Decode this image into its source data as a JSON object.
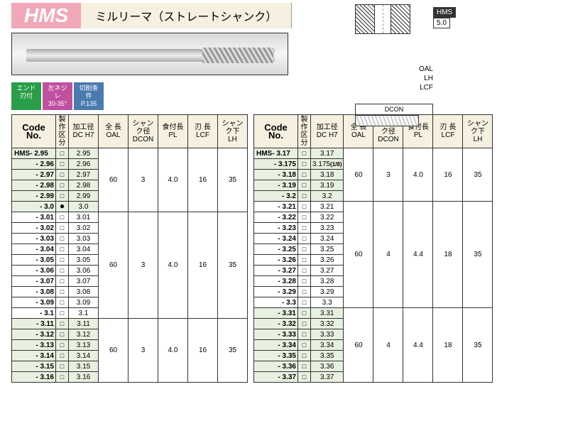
{
  "header": {
    "code": "HMS",
    "title": "ミルリーマ（ストレートシャンク）"
  },
  "spec_tag": {
    "code": "HMS",
    "value": "5.0"
  },
  "dim_labels": {
    "oal": "OAL",
    "lh": "LH",
    "lcf": "LCF",
    "dcon": "DCON"
  },
  "badges": [
    {
      "l1": "エンド",
      "l2": "刃付"
    },
    {
      "l1": "左ネジレ",
      "l2": "30-35°"
    },
    {
      "l1": "切削条件",
      "l2": "P.135"
    }
  ],
  "columns": {
    "code": "Code No.",
    "chk": "製作\n区分",
    "dc": "加工径\nDC H7",
    "oal": "全 長\nOAL",
    "dcon": "シャンク径\nDCON",
    "pl": "食付長\nPL",
    "lcf": "刃 長\nLCF",
    "lh": "シャンク下\nLH"
  },
  "colors": {
    "header_bg": "#f5f0e0",
    "hms_bg": "#f0a8b8",
    "badge_colors": [
      "#2a9d4a",
      "#c050a0",
      "#4a7ab0"
    ],
    "group_odd": "#e8f0e0",
    "highlight": "#fff68f"
  },
  "left_groups": [
    {
      "spans": {
        "oal": "60",
        "dcon": "3",
        "pl": "4.0",
        "lcf": "16",
        "lh": "35"
      },
      "rows": [
        {
          "code": "HMS- 2.95",
          "chk": "□",
          "dc": "2.95"
        },
        {
          "code": "- 2.96",
          "chk": "□",
          "dc": "2.96"
        },
        {
          "code": "- 2.97",
          "chk": "□",
          "dc": "2.97"
        },
        {
          "code": "- 2.98",
          "chk": "□",
          "dc": "2.98"
        },
        {
          "code": "- 2.99",
          "chk": "□",
          "dc": "2.99"
        },
        {
          "code": "- 3.0",
          "chk": "●",
          "dc": "3.0"
        }
      ]
    },
    {
      "spans": {
        "oal": "60",
        "dcon": "3",
        "pl": "4.0",
        "lcf": "16",
        "lh": "35"
      },
      "rows": [
        {
          "code": "- 3.01",
          "chk": "□",
          "dc": "3.01"
        },
        {
          "code": "- 3.02",
          "chk": "□",
          "dc": "3.02"
        },
        {
          "code": "- 3.03",
          "chk": "□",
          "dc": "3.03"
        },
        {
          "code": "- 3.04",
          "chk": "□",
          "dc": "3.04"
        },
        {
          "code": "- 3.05",
          "chk": "□",
          "dc": "3.05"
        },
        {
          "code": "- 3.06",
          "chk": "□",
          "dc": "3.06"
        },
        {
          "code": "- 3.07",
          "chk": "□",
          "dc": "3.07"
        },
        {
          "code": "- 3.08",
          "chk": "□",
          "dc": "3.08"
        },
        {
          "code": "- 3.09",
          "chk": "□",
          "dc": "3.09"
        },
        {
          "code": "- 3.1",
          "chk": "□",
          "dc": "3.1"
        }
      ]
    },
    {
      "spans": {
        "oal": "60",
        "dcon": "3",
        "pl": "4.0",
        "lcf": "16",
        "lh": "35"
      },
      "rows": [
        {
          "code": "- 3.11",
          "chk": "□",
          "dc": "3.11"
        },
        {
          "code": "- 3.12",
          "chk": "□",
          "dc": "3.12"
        },
        {
          "code": "- 3.13",
          "chk": "□",
          "dc": "3.13"
        },
        {
          "code": "- 3.14",
          "chk": "□",
          "dc": "3.14"
        },
        {
          "code": "- 3.15",
          "chk": "□",
          "dc": "3.15"
        },
        {
          "code": "- 3.16",
          "chk": "□",
          "dc": "3.16"
        }
      ]
    }
  ],
  "right_groups": [
    {
      "spans": {
        "oal": "60",
        "dcon": "3",
        "pl": "4.0",
        "lcf": "16",
        "lh": "35"
      },
      "rows": [
        {
          "code": "HMS- 3.17",
          "chk": "□",
          "dc": "3.17"
        },
        {
          "code": "- 3.175",
          "chk": "□",
          "dc": "3.175",
          "frac": "(1/8)",
          "hl": true
        },
        {
          "code": "- 3.18",
          "chk": "□",
          "dc": "3.18"
        },
        {
          "code": "- 3.19",
          "chk": "□",
          "dc": "3.19"
        },
        {
          "code": "- 3.2",
          "chk": "□",
          "dc": "3.2"
        }
      ]
    },
    {
      "spans": {
        "oal": "60",
        "dcon": "4",
        "pl": "4.4",
        "lcf": "18",
        "lh": "35"
      },
      "rows": [
        {
          "code": "- 3.21",
          "chk": "□",
          "dc": "3.21"
        },
        {
          "code": "- 3.22",
          "chk": "□",
          "dc": "3.22"
        },
        {
          "code": "- 3.23",
          "chk": "□",
          "dc": "3.23"
        },
        {
          "code": "- 3.24",
          "chk": "□",
          "dc": "3.24"
        },
        {
          "code": "- 3.25",
          "chk": "□",
          "dc": "3.25"
        },
        {
          "code": "- 3.26",
          "chk": "□",
          "dc": "3.26"
        },
        {
          "code": "- 3.27",
          "chk": "□",
          "dc": "3.27"
        },
        {
          "code": "- 3.28",
          "chk": "□",
          "dc": "3.28"
        },
        {
          "code": "- 3.29",
          "chk": "□",
          "dc": "3.29"
        },
        {
          "code": "- 3.3",
          "chk": "□",
          "dc": "3.3"
        }
      ]
    },
    {
      "spans": {
        "oal": "60",
        "dcon": "4",
        "pl": "4.4",
        "lcf": "18",
        "lh": "35"
      },
      "rows": [
        {
          "code": "- 3.31",
          "chk": "□",
          "dc": "3.31"
        },
        {
          "code": "- 3.32",
          "chk": "□",
          "dc": "3.32"
        },
        {
          "code": "- 3.33",
          "chk": "□",
          "dc": "3.33"
        },
        {
          "code": "- 3.34",
          "chk": "□",
          "dc": "3.34"
        },
        {
          "code": "- 3.35",
          "chk": "□",
          "dc": "3.35"
        },
        {
          "code": "- 3.36",
          "chk": "□",
          "dc": "3.36"
        },
        {
          "code": "- 3.37",
          "chk": "□",
          "dc": "3.37"
        }
      ]
    }
  ]
}
